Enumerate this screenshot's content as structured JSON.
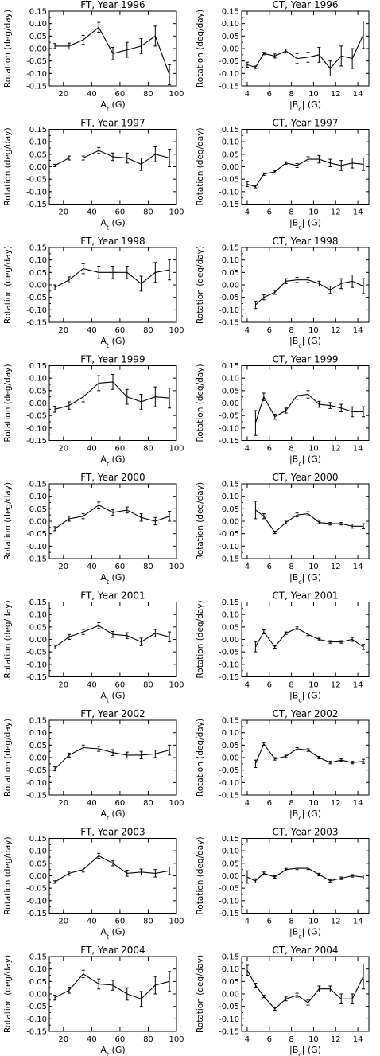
{
  "chart_data": [
    {
      "type": "line",
      "title": "FT, Year 1996",
      "xlabel": "A_t (G)",
      "ylabel": "Rotation (deg/day)",
      "xlim": [
        10,
        100
      ],
      "ylim": [
        -0.15,
        0.15
      ],
      "xticks": [
        "20",
        "40",
        "60",
        "80",
        "100"
      ],
      "yticks": [
        "0.15",
        "0.10",
        "0.05",
        "0.00",
        "-0.05",
        "-0.10",
        "-0.15"
      ],
      "x": [
        14,
        24,
        34,
        45,
        55,
        65,
        75,
        85,
        95
      ],
      "y": [
        0.01,
        0.01,
        0.035,
        0.085,
        -0.02,
        -0.005,
        0.01,
        0.05,
        -0.105
      ],
      "err": [
        0.01,
        0.012,
        0.018,
        0.02,
        0.025,
        0.03,
        0.03,
        0.04,
        0.04
      ]
    },
    {
      "type": "line",
      "title": "CT, Year 1996",
      "xlabel": "|B_c| (G)",
      "ylabel": "Rotation (deg/day)",
      "xlim": [
        3.5,
        15
      ],
      "ylim": [
        -0.15,
        0.15
      ],
      "xticks": [
        "4",
        "6",
        "8",
        "10",
        "12",
        "14"
      ],
      "yticks": [
        "0.15",
        "0.10",
        "0.05",
        "0.00",
        "-0.05",
        "-0.10",
        "-0.15"
      ],
      "x": [
        4,
        4.75,
        5.5,
        6.5,
        7.5,
        8.5,
        9.5,
        10.5,
        11.5,
        12.5,
        13.5,
        14.5
      ],
      "y": [
        -0.065,
        -0.075,
        -0.02,
        -0.03,
        -0.01,
        -0.04,
        -0.035,
        -0.025,
        -0.08,
        -0.03,
        -0.04,
        0.055
      ],
      "err": [
        0.01,
        0.005,
        0.005,
        0.008,
        0.008,
        0.02,
        0.02,
        0.03,
        0.03,
        0.04,
        0.04,
        0.055
      ]
    },
    {
      "type": "line",
      "title": "FT, Year 1997",
      "xlabel": "A_t (G)",
      "ylabel": "Rotation (deg/day)",
      "xlim": [
        10,
        100
      ],
      "ylim": [
        -0.15,
        0.15
      ],
      "xticks": [
        "20",
        "40",
        "60",
        "80",
        "100"
      ],
      "yticks": [
        "0.15",
        "0.10",
        "0.05",
        "0.00",
        "-0.05",
        "-0.10",
        "-0.15"
      ],
      "x": [
        14,
        24,
        34,
        45,
        55,
        65,
        75,
        85,
        95
      ],
      "y": [
        0.005,
        0.035,
        0.035,
        0.065,
        0.04,
        0.035,
        0.01,
        0.05,
        0.035
      ],
      "err": [
        0.005,
        0.008,
        0.008,
        0.012,
        0.015,
        0.02,
        0.025,
        0.03,
        0.035
      ]
    },
    {
      "type": "line",
      "title": "CT, Year 1997",
      "xlabel": "|B_c| (G)",
      "ylabel": "Rotation (deg/day)",
      "xlim": [
        3.5,
        15
      ],
      "ylim": [
        -0.15,
        0.15
      ],
      "xticks": [
        "4",
        "6",
        "8",
        "10",
        "12",
        "14"
      ],
      "yticks": [
        "0.15",
        "0.10",
        "0.05",
        "0.00",
        "-0.05",
        "-0.10",
        "-0.15"
      ],
      "x": [
        4,
        4.75,
        5.5,
        6.5,
        7.5,
        8.5,
        9.5,
        10.5,
        11.5,
        12.5,
        13.5,
        14.5
      ],
      "y": [
        -0.07,
        -0.08,
        -0.03,
        -0.02,
        0.015,
        0.005,
        0.03,
        0.03,
        0.015,
        0.005,
        0.015,
        0.01
      ],
      "err": [
        0.01,
        0.005,
        0.005,
        0.005,
        0.005,
        0.008,
        0.01,
        0.015,
        0.015,
        0.02,
        0.02,
        0.025
      ]
    },
    {
      "type": "line",
      "title": "FT, Year 1998",
      "xlabel": "A_t (G)",
      "ylabel": "Rotation (deg/day)",
      "xlim": [
        10,
        100
      ],
      "ylim": [
        -0.15,
        0.15
      ],
      "xticks": [
        "20",
        "40",
        "60",
        "80",
        "100"
      ],
      "yticks": [
        "0.15",
        "0.10",
        "0.05",
        "0.00",
        "-0.05",
        "-0.10",
        "-0.15"
      ],
      "x": [
        14,
        24,
        34,
        45,
        55,
        65,
        75,
        85,
        95
      ],
      "y": [
        -0.01,
        0.02,
        0.065,
        0.05,
        0.05,
        0.05,
        0.005,
        0.05,
        0.06
      ],
      "err": [
        0.01,
        0.012,
        0.02,
        0.025,
        0.025,
        0.025,
        0.03,
        0.04,
        0.04
      ]
    },
    {
      "type": "line",
      "title": "CT, Year 1998",
      "xlabel": "|B_c| (G)",
      "ylabel": "Rotation (deg/day)",
      "xlim": [
        3.5,
        15
      ],
      "ylim": [
        -0.15,
        0.15
      ],
      "xticks": [
        "4",
        "6",
        "8",
        "10",
        "12",
        "14"
      ],
      "yticks": [
        "0.15",
        "0.10",
        "0.05",
        "0.00",
        "-0.05",
        "-0.10",
        "-0.15"
      ],
      "x": [
        4.75,
        5.5,
        6.5,
        7.5,
        8.5,
        9.5,
        10.5,
        11.5,
        12.5,
        13.5,
        14.5
      ],
      "y": [
        -0.08,
        -0.05,
        -0.03,
        0.015,
        0.02,
        0.02,
        0.005,
        -0.02,
        0.005,
        0.015,
        -0.005
      ],
      "err": [
        0.015,
        0.01,
        0.008,
        0.01,
        0.01,
        0.01,
        0.01,
        0.015,
        0.02,
        0.025,
        0.03
      ]
    },
    {
      "type": "line",
      "title": "FT, Year 1999",
      "xlabel": "A_t (G)",
      "ylabel": "Rotation (deg/day)",
      "xlim": [
        10,
        100
      ],
      "ylim": [
        -0.15,
        0.15
      ],
      "xticks": [
        "20",
        "40",
        "60",
        "80",
        "100"
      ],
      "yticks": [
        "0.15",
        "0.10",
        "0.05",
        "0.00",
        "-0.05",
        "-0.10",
        "-0.15"
      ],
      "x": [
        14,
        24,
        34,
        45,
        55,
        65,
        75,
        85,
        95
      ],
      "y": [
        -0.025,
        -0.01,
        0.025,
        0.08,
        0.085,
        0.025,
        0.005,
        0.025,
        0.02
      ],
      "err": [
        0.012,
        0.015,
        0.02,
        0.03,
        0.03,
        0.03,
        0.03,
        0.04,
        0.04
      ]
    },
    {
      "type": "line",
      "title": "CT, Year 1999",
      "xlabel": "|B_c| (G)",
      "ylabel": "Rotation (deg/day)",
      "xlim": [
        3.5,
        15
      ],
      "ylim": [
        -0.15,
        0.15
      ],
      "xticks": [
        "4",
        "6",
        "8",
        "10",
        "12",
        "14"
      ],
      "yticks": [
        "0.15",
        "0.10",
        "0.05",
        "0.00",
        "-0.05",
        "-0.10",
        "-0.15"
      ],
      "x": [
        4.75,
        5.5,
        6.5,
        7.5,
        8.5,
        9.5,
        10.5,
        11.5,
        12.5,
        13.5,
        14.5
      ],
      "y": [
        -0.08,
        0.025,
        -0.055,
        -0.03,
        0.03,
        0.035,
        -0.005,
        -0.01,
        -0.02,
        -0.035,
        -0.035
      ],
      "err": [
        0.05,
        0.015,
        0.01,
        0.01,
        0.015,
        0.015,
        0.012,
        0.012,
        0.015,
        0.02,
        0.02
      ]
    },
    {
      "type": "line",
      "title": "FT, Year 2000",
      "xlabel": "A_t (G)",
      "ylabel": "Rotation (deg/day)",
      "xlim": [
        10,
        100
      ],
      "ylim": [
        -0.15,
        0.15
      ],
      "xticks": [
        "20",
        "40",
        "60",
        "80",
        "100"
      ],
      "yticks": [
        "0.15",
        "0.10",
        "0.05",
        "0.00",
        "-0.05",
        "-0.10",
        "-0.15"
      ],
      "x": [
        14,
        24,
        34,
        45,
        55,
        65,
        75,
        85,
        95
      ],
      "y": [
        -0.03,
        0.01,
        0.02,
        0.065,
        0.035,
        0.045,
        0.015,
        0.0,
        0.02
      ],
      "err": [
        0.008,
        0.01,
        0.01,
        0.012,
        0.012,
        0.012,
        0.015,
        0.015,
        0.02
      ]
    },
    {
      "type": "line",
      "title": "CT, Year 2000",
      "xlabel": "|B_c| (G)",
      "ylabel": "Rotation (deg/day)",
      "xlim": [
        3.5,
        15
      ],
      "ylim": [
        -0.15,
        0.15
      ],
      "xticks": [
        "4",
        "6",
        "8",
        "10",
        "12",
        "14"
      ],
      "yticks": [
        "0.15",
        "0.10",
        "0.05",
        "0.00",
        "-0.05",
        "-0.10",
        "-0.15"
      ],
      "x": [
        4.75,
        5.5,
        6.5,
        7.5,
        8.5,
        9.5,
        10.5,
        11.5,
        12.5,
        13.5,
        14.5
      ],
      "y": [
        0.045,
        0.02,
        -0.045,
        -0.005,
        0.025,
        0.03,
        -0.005,
        -0.01,
        -0.01,
        -0.02,
        -0.02
      ],
      "err": [
        0.035,
        0.01,
        0.005,
        0.005,
        0.008,
        0.008,
        0.005,
        0.005,
        0.005,
        0.008,
        0.01
      ]
    },
    {
      "type": "line",
      "title": "FT, Year 2001",
      "xlabel": "A_t (G)",
      "ylabel": "Rotation (deg/day)",
      "xlim": [
        10,
        100
      ],
      "ylim": [
        -0.15,
        0.15
      ],
      "xticks": [
        "20",
        "40",
        "60",
        "80",
        "100"
      ],
      "yticks": [
        "0.15",
        "0.10",
        "0.05",
        "0.00",
        "-0.05",
        "-0.10",
        "-0.15"
      ],
      "x": [
        14,
        24,
        34,
        45,
        55,
        65,
        75,
        85,
        95
      ],
      "y": [
        -0.03,
        0.01,
        0.03,
        0.055,
        0.02,
        0.015,
        -0.01,
        0.025,
        0.01
      ],
      "err": [
        0.008,
        0.01,
        0.01,
        0.012,
        0.012,
        0.012,
        0.015,
        0.015,
        0.02
      ]
    },
    {
      "type": "line",
      "title": "CT, Year 2001",
      "xlabel": "|B_c| (G)",
      "ylabel": "Rotation (deg/day)",
      "xlim": [
        3.5,
        15
      ],
      "ylim": [
        -0.15,
        0.15
      ],
      "xticks": [
        "4",
        "6",
        "8",
        "10",
        "12",
        "14"
      ],
      "yticks": [
        "0.15",
        "0.10",
        "0.05",
        "0.00",
        "-0.05",
        "-0.10",
        "-0.15"
      ],
      "x": [
        4.75,
        5.5,
        6.5,
        7.5,
        8.5,
        9.5,
        10.5,
        11.5,
        12.5,
        13.5,
        14.5
      ],
      "y": [
        -0.03,
        0.03,
        -0.03,
        0.025,
        0.045,
        0.02,
        0.0,
        -0.01,
        -0.01,
        0.0,
        -0.03
      ],
      "err": [
        0.02,
        0.008,
        0.005,
        0.005,
        0.005,
        0.005,
        0.005,
        0.005,
        0.005,
        0.008,
        0.01
      ]
    },
    {
      "type": "line",
      "title": "FT, Year 2002",
      "xlabel": "A_t (G)",
      "ylabel": "Rotation (deg/day)",
      "xlim": [
        10,
        100
      ],
      "ylim": [
        -0.15,
        0.15
      ],
      "xticks": [
        "20",
        "40",
        "60",
        "80",
        "100"
      ],
      "yticks": [
        "0.15",
        "0.10",
        "0.05",
        "0.00",
        "-0.05",
        "-0.10",
        "-0.15"
      ],
      "x": [
        14,
        24,
        34,
        45,
        55,
        65,
        75,
        85,
        95
      ],
      "y": [
        -0.045,
        0.01,
        0.04,
        0.035,
        0.02,
        0.01,
        0.01,
        0.015,
        0.03
      ],
      "err": [
        0.008,
        0.008,
        0.01,
        0.01,
        0.012,
        0.012,
        0.015,
        0.015,
        0.02
      ]
    },
    {
      "type": "line",
      "title": "CT, Year 2002",
      "xlabel": "|B_c| (G)",
      "ylabel": "Rotation (deg/day)",
      "xlim": [
        3.5,
        15
      ],
      "ylim": [
        -0.15,
        0.15
      ],
      "xticks": [
        "4",
        "6",
        "8",
        "10",
        "12",
        "14"
      ],
      "yticks": [
        "0.15",
        "0.10",
        "0.05",
        "0.00",
        "-0.05",
        "-0.10",
        "-0.15"
      ],
      "x": [
        4.75,
        5.5,
        6.5,
        7.5,
        8.5,
        9.5,
        10.5,
        11.5,
        12.5,
        13.5,
        14.5
      ],
      "y": [
        -0.025,
        0.055,
        -0.005,
        0.005,
        0.035,
        0.03,
        0.0,
        -0.02,
        -0.01,
        -0.02,
        -0.015
      ],
      "err": [
        0.015,
        0.005,
        0.005,
        0.005,
        0.005,
        0.005,
        0.005,
        0.005,
        0.005,
        0.005,
        0.008
      ]
    },
    {
      "type": "line",
      "title": "FT, Year 2003",
      "xlabel": "A_t (G)",
      "ylabel": "Rotation (deg/day)",
      "xlim": [
        10,
        100
      ],
      "ylim": [
        -0.15,
        0.15
      ],
      "xticks": [
        "20",
        "40",
        "60",
        "80",
        "100"
      ],
      "yticks": [
        "0.15",
        "0.10",
        "0.05",
        "0.00",
        "-0.05",
        "-0.10",
        "-0.15"
      ],
      "x": [
        14,
        24,
        34,
        45,
        55,
        65,
        75,
        85,
        95
      ],
      "y": [
        -0.025,
        0.01,
        0.025,
        0.08,
        0.05,
        0.01,
        0.015,
        0.01,
        0.02
      ],
      "err": [
        0.005,
        0.008,
        0.01,
        0.01,
        0.01,
        0.012,
        0.012,
        0.015,
        0.015
      ]
    },
    {
      "type": "line",
      "title": "CT, Year 2003",
      "xlabel": "|B_c| (G)",
      "ylabel": "Rotation (deg/day)",
      "xlim": [
        3.5,
        15
      ],
      "ylim": [
        -0.15,
        0.15
      ],
      "xticks": [
        "4",
        "6",
        "8",
        "10",
        "12",
        "14"
      ],
      "yticks": [
        "0.15",
        "0.10",
        "0.05",
        "0.00",
        "-0.05",
        "-0.10",
        "-0.15"
      ],
      "x": [
        4,
        4.75,
        5.5,
        6.5,
        7.5,
        8.5,
        9.5,
        10.5,
        11.5,
        12.5,
        13.5,
        14.5
      ],
      "y": [
        -0.005,
        -0.02,
        0.01,
        -0.005,
        0.025,
        0.03,
        0.03,
        0.005,
        -0.02,
        -0.01,
        0.0,
        -0.005
      ],
      "err": [
        0.025,
        0.008,
        0.005,
        0.005,
        0.005,
        0.005,
        0.005,
        0.005,
        0.005,
        0.005,
        0.005,
        0.008
      ]
    },
    {
      "type": "line",
      "title": "FT, Year 2004",
      "xlabel": "A_t (G)",
      "ylabel": "Rotation (deg/day)",
      "xlim": [
        10,
        100
      ],
      "ylim": [
        -0.15,
        0.15
      ],
      "xticks": [
        "20",
        "40",
        "60",
        "80",
        "100"
      ],
      "yticks": [
        "0.15",
        "0.10",
        "0.05",
        "0.00",
        "-0.05",
        "-0.10",
        "-0.15"
      ],
      "x": [
        14,
        24,
        34,
        45,
        55,
        65,
        75,
        85,
        95
      ],
      "y": [
        -0.015,
        0.015,
        0.08,
        0.04,
        0.035,
        0.0,
        -0.02,
        0.035,
        0.05
      ],
      "err": [
        0.01,
        0.012,
        0.015,
        0.02,
        0.02,
        0.025,
        0.03,
        0.035,
        0.04
      ]
    },
    {
      "type": "line",
      "title": "CT, Year 2004",
      "xlabel": "|B_c| (G)",
      "ylabel": "Rotation (deg/day)",
      "xlim": [
        3.5,
        15
      ],
      "ylim": [
        -0.15,
        0.15
      ],
      "xticks": [
        "4",
        "6",
        "8",
        "10",
        "12",
        "14"
      ],
      "yticks": [
        "0.15",
        "0.10",
        "0.05",
        "0.00",
        "-0.05",
        "-0.10",
        "-0.15"
      ],
      "x": [
        4,
        4.75,
        5.5,
        6.5,
        7.5,
        8.5,
        9.5,
        10.5,
        11.5,
        12.5,
        13.5,
        14.5
      ],
      "y": [
        0.095,
        0.035,
        -0.01,
        -0.06,
        -0.02,
        -0.005,
        -0.035,
        0.02,
        0.02,
        -0.02,
        -0.02,
        0.07
      ],
      "err": [
        0.02,
        0.008,
        0.005,
        0.005,
        0.008,
        0.008,
        0.01,
        0.012,
        0.012,
        0.02,
        0.02,
        0.05
      ]
    }
  ]
}
